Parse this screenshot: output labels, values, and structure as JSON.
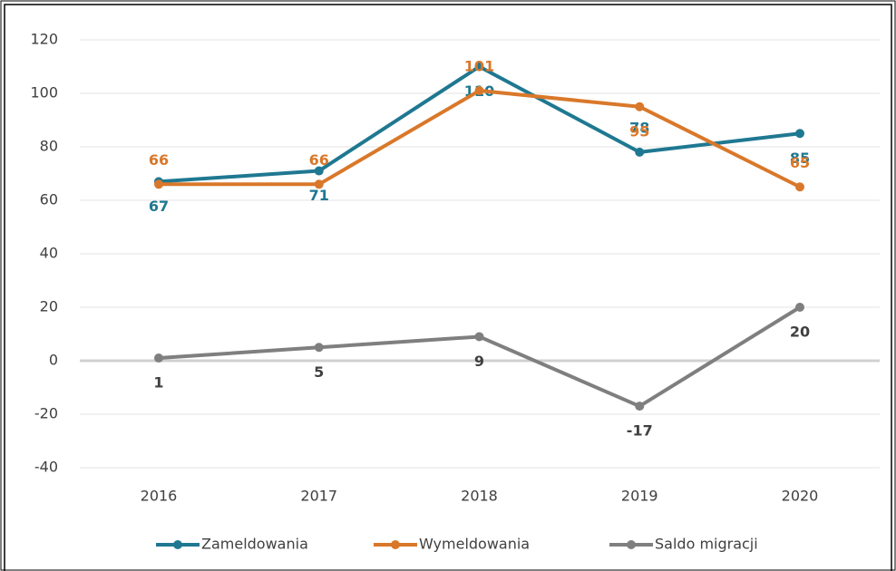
{
  "chart_data": {
    "type": "line",
    "categories": [
      "2016",
      "2017",
      "2018",
      "2019",
      "2020"
    ],
    "series": [
      {
        "name": "Zameldowania",
        "color": "#1f7891",
        "values": [
          67,
          71,
          110,
          78,
          85
        ]
      },
      {
        "name": "Wymeldowania",
        "color": "#d9782a",
        "values": [
          66,
          66,
          101,
          95,
          65
        ]
      },
      {
        "name": "Saldo migracji",
        "color": "#7f7f7f",
        "values": [
          1,
          5,
          9,
          -17,
          20
        ]
      }
    ],
    "ylim": [
      -40,
      120
    ],
    "yticks": [
      -40,
      -20,
      0,
      20,
      40,
      60,
      80,
      100,
      120
    ],
    "grid": true,
    "legend": "bottom"
  }
}
